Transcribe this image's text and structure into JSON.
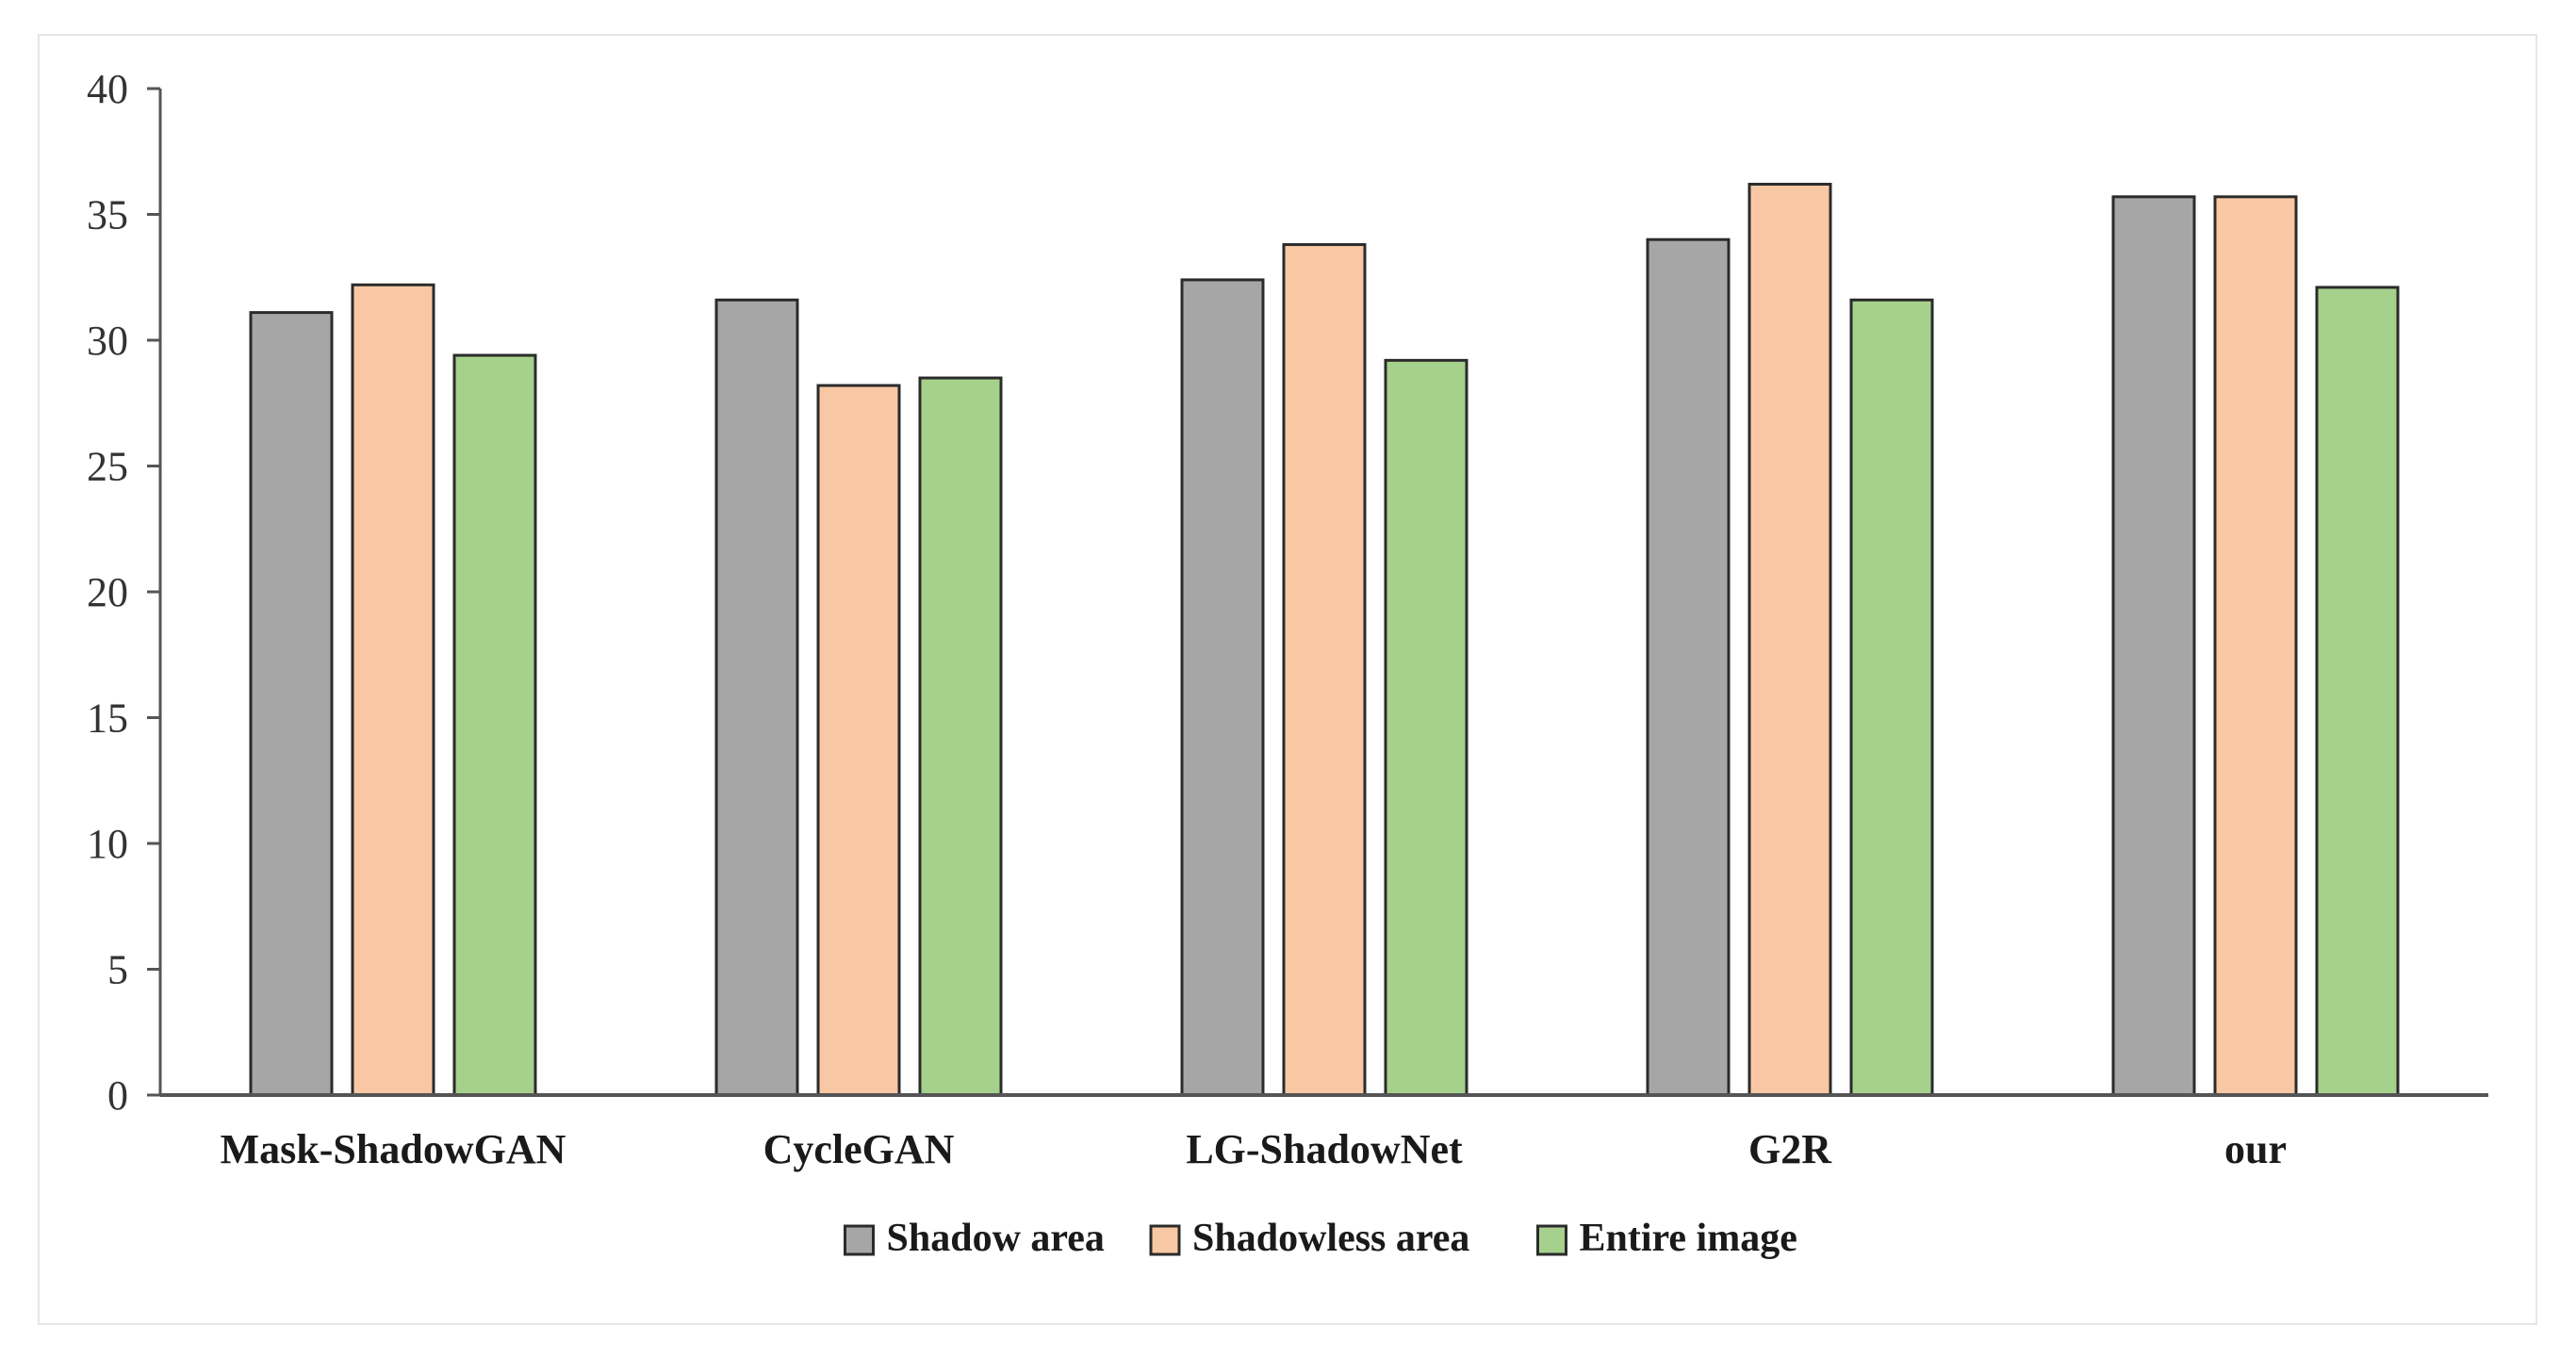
{
  "chart_data": {
    "type": "bar",
    "title": "",
    "xlabel": "",
    "ylabel": "",
    "ylim": [
      0,
      40
    ],
    "yticks": [
      0,
      5,
      10,
      15,
      20,
      25,
      30,
      35,
      40
    ],
    "grid": false,
    "legend_position": "bottom",
    "categories": [
      "Mask-ShadowGAN",
      "CycleGAN",
      "LG-ShadowNet",
      "G2R",
      "our"
    ],
    "series": [
      {
        "name": "Shadow area",
        "color": "#a6a6a6",
        "values": [
          31.1,
          31.6,
          32.4,
          34.0,
          35.7
        ]
      },
      {
        "name": "Shadowless area",
        "color": "#f8c8a4",
        "values": [
          32.2,
          28.2,
          33.8,
          36.2,
          35.7
        ]
      },
      {
        "name": "Entire image",
        "color": "#a5d18c",
        "values": [
          29.4,
          28.5,
          29.2,
          31.6,
          32.1
        ]
      }
    ]
  }
}
